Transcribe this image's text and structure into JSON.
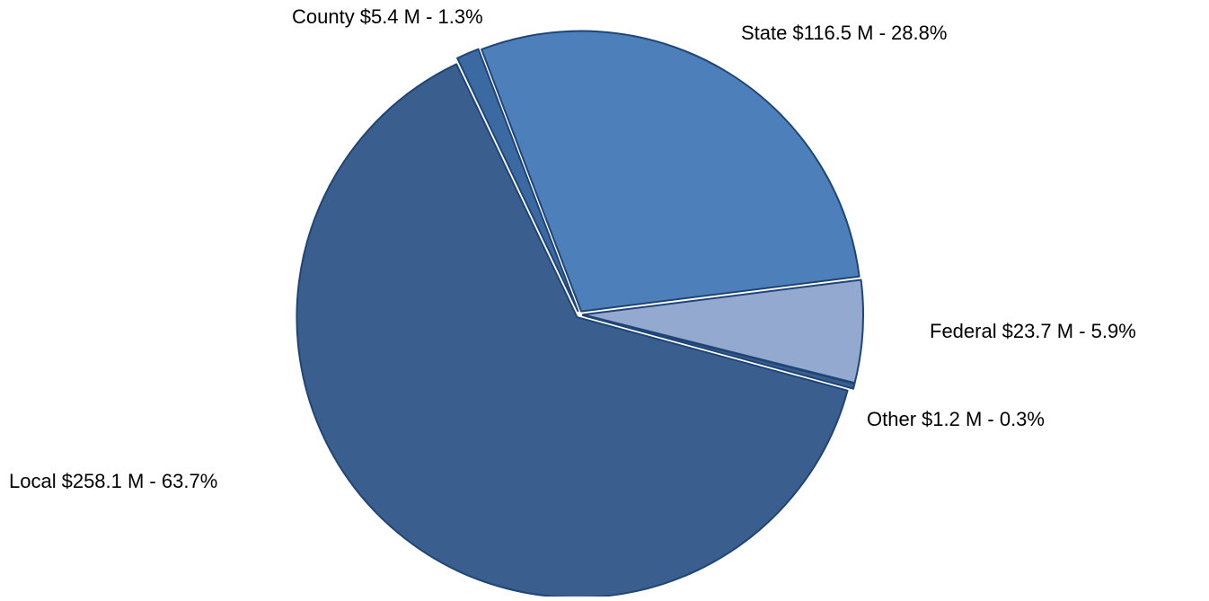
{
  "chart_data": {
    "type": "pie",
    "categories": [
      "County",
      "State",
      "Federal",
      "Other",
      "Local"
    ],
    "values": [
      1.3,
      28.8,
      5.9,
      0.3,
      63.7
    ],
    "value_labels": [
      "$5.4 M - 1.3%",
      "$116.5 M - 28.8%",
      "$23.7 M - 5.9%",
      "$1.2 M - 0.3%",
      "$258.1 M - 63.7%"
    ],
    "colors": [
      "#3b6aa3",
      "#4d80bb",
      "#93a9cf",
      "#3a5f8e",
      "#3a5f8e"
    ]
  }
}
